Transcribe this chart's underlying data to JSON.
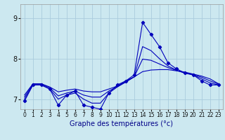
{
  "xlabel": "Graphe des températures (°c)",
  "background_color": "#cce8f0",
  "grid_color": "#aaccdd",
  "line_color": "#0000bb",
  "ylim": [
    6.75,
    9.35
  ],
  "xlim": [
    -0.5,
    23.5
  ],
  "yticks": [
    7,
    8,
    9
  ],
  "xticks": [
    0,
    1,
    2,
    3,
    4,
    5,
    6,
    7,
    8,
    9,
    10,
    11,
    12,
    13,
    14,
    15,
    16,
    17,
    18,
    19,
    20,
    21,
    22,
    23
  ],
  "series1_x": [
    0,
    1,
    2,
    3,
    4,
    5,
    6,
    7,
    8,
    9,
    10,
    11,
    12,
    13,
    14,
    15,
    16,
    17,
    18,
    19,
    20,
    21,
    22,
    23
  ],
  "series1_y": [
    6.95,
    7.35,
    7.35,
    7.25,
    6.85,
    7.1,
    7.2,
    6.85,
    6.8,
    6.75,
    7.15,
    7.35,
    7.45,
    7.6,
    8.9,
    8.6,
    8.3,
    7.9,
    7.75,
    7.65,
    7.6,
    7.45,
    7.35,
    7.35
  ],
  "series2_x": [
    0,
    1,
    2,
    3,
    4,
    5,
    6,
    7,
    8,
    9,
    10,
    11,
    12,
    13,
    14,
    15,
    16,
    17,
    18,
    19,
    20,
    21,
    22,
    23
  ],
  "series2_y": [
    7.1,
    7.38,
    7.38,
    7.3,
    7.18,
    7.22,
    7.25,
    7.2,
    7.18,
    7.18,
    7.25,
    7.32,
    7.45,
    7.55,
    7.68,
    7.72,
    7.73,
    7.73,
    7.7,
    7.67,
    7.62,
    7.57,
    7.5,
    7.38
  ],
  "series3_x": [
    0,
    1,
    2,
    3,
    4,
    5,
    6,
    7,
    8,
    9,
    10,
    11,
    12,
    13,
    14,
    15,
    16,
    17,
    18,
    19,
    20,
    21,
    22,
    23
  ],
  "series3_y": [
    7.0,
    7.35,
    7.35,
    7.25,
    7.0,
    7.1,
    7.15,
    7.0,
    6.9,
    6.9,
    7.15,
    7.3,
    7.42,
    7.55,
    8.3,
    8.2,
    8.0,
    7.82,
    7.72,
    7.64,
    7.6,
    7.5,
    7.4,
    7.35
  ],
  "series4_x": [
    0,
    1,
    2,
    3,
    4,
    5,
    6,
    7,
    8,
    9,
    10,
    11,
    12,
    13,
    14,
    15,
    16,
    17,
    18,
    19,
    20,
    21,
    22,
    23
  ],
  "series4_y": [
    7.05,
    7.37,
    7.37,
    7.28,
    7.08,
    7.15,
    7.2,
    7.1,
    7.05,
    7.05,
    7.2,
    7.31,
    7.43,
    7.55,
    7.99,
    7.96,
    7.87,
    7.78,
    7.71,
    7.65,
    7.61,
    7.54,
    7.45,
    7.37
  ],
  "xlabel_fontsize": 7,
  "tick_fontsize_x": 5.5,
  "tick_fontsize_y": 7
}
